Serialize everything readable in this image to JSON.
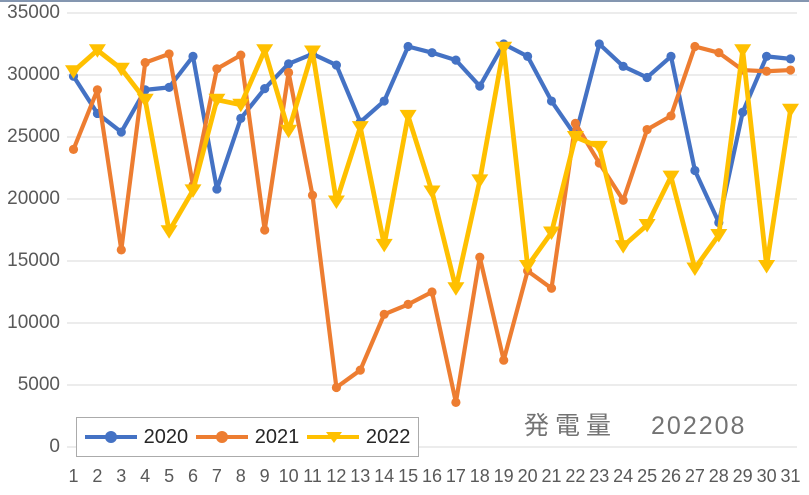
{
  "window": {
    "top_border_color": "#8496B0",
    "background": "#FFFFFF"
  },
  "chart_data": {
    "type": "line",
    "title": "発電量",
    "title_right": "202208",
    "title_color": "#737373",
    "axis_text_color": "#595959",
    "gridline_color": "#D9D9D9",
    "grid": "horizontal",
    "x": [
      1,
      2,
      3,
      4,
      5,
      6,
      7,
      8,
      9,
      10,
      11,
      12,
      13,
      14,
      15,
      16,
      17,
      18,
      19,
      20,
      21,
      22,
      23,
      24,
      25,
      26,
      27,
      28,
      29,
      30,
      31
    ],
    "y_axis": {
      "min": 0,
      "max": 35000,
      "step": 5000,
      "ticks": [
        0,
        5000,
        10000,
        15000,
        20000,
        25000,
        30000,
        35000
      ]
    },
    "legend": {
      "position": "bottom-left-overlay",
      "items": [
        "2020",
        "2021",
        "2022"
      ]
    },
    "series": [
      {
        "name": "2020",
        "color": "#4472C4",
        "marker": "circle",
        "values": [
          29900,
          26900,
          25400,
          28800,
          29000,
          31500,
          20800,
          26500,
          28900,
          30900,
          31700,
          30800,
          26200,
          27900,
          32300,
          31800,
          31200,
          29100,
          32500,
          31500,
          27900,
          25100,
          32500,
          30700,
          29800,
          31500,
          22300,
          18100,
          27000,
          31500,
          31300
        ]
      },
      {
        "name": "2021",
        "color": "#ED7D31",
        "marker": "circle",
        "values": [
          24000,
          28800,
          15900,
          31000,
          31700,
          21100,
          30500,
          31600,
          17500,
          30200,
          20300,
          4800,
          6200,
          10700,
          11500,
          12500,
          3600,
          15300,
          7000,
          14200,
          12800,
          26100,
          22900,
          19900,
          25600,
          26700,
          32300,
          31800,
          30400,
          30300,
          30400
        ]
      },
      {
        "name": "2022",
        "color": "#FFC000",
        "marker": "triangle-down",
        "values": [
          30300,
          32000,
          30500,
          28000,
          17400,
          20700,
          28000,
          27600,
          32000,
          25500,
          31900,
          19800,
          25800,
          16300,
          26700,
          20600,
          12800,
          21500,
          32200,
          14600,
          17300,
          25000,
          24200,
          16200,
          17900,
          21800,
          14400,
          17100,
          32000,
          14600,
          27200
        ]
      }
    ]
  }
}
